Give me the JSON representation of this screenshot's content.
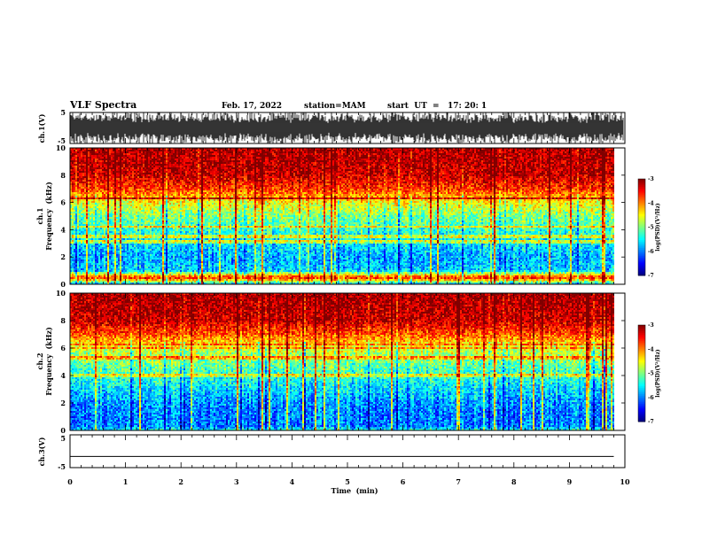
{
  "header": {
    "title": "VLF Spectra",
    "date": "Feb. 17, 2022",
    "station": "station=MAM",
    "start": "start  UT  =   17: 20: 1"
  },
  "chart_data": [
    {
      "type": "line",
      "name": "ch1-waveform",
      "ylabel": "ch.1(V)",
      "ylim": [
        -5,
        5
      ],
      "yticks": [
        "5",
        "-5"
      ],
      "xlim": [
        0,
        10
      ],
      "trace": "dense VLF waveform filling most of the ±5 V range (clipped)"
    },
    {
      "type": "heatmap",
      "name": "ch1-spectrogram",
      "ylabel_line1": "ch.1",
      "ylabel_line2": "Frequency  (kHz)",
      "ylim": [
        0,
        10
      ],
      "yticks": [
        "0",
        "2",
        "4",
        "6",
        "8",
        "10"
      ],
      "xlim": [
        0,
        9.8
      ],
      "colorbar": {
        "label": "log(PSD)(V²/Hz)",
        "range": [
          -7,
          -3
        ],
        "ticks": [
          "-3",
          "-4",
          "-5",
          "-6",
          "-7"
        ]
      },
      "profile": {
        "freq_khz": [
          0,
          0.3,
          0.5,
          1,
          2,
          3,
          4,
          5,
          6,
          6.5,
          7,
          8,
          9,
          10
        ],
        "log_psd": [
          -5.8,
          -4.3,
          -3.6,
          -5.7,
          -5.8,
          -5.6,
          -5.3,
          -5.0,
          -4.5,
          -4.1,
          -3.7,
          -3.3,
          -3.2,
          -3.2
        ]
      }
    },
    {
      "type": "heatmap",
      "name": "ch2-spectrogram",
      "ylabel_line1": "ch.2",
      "ylabel_line2": "Frequency  (kHz)",
      "ylim": [
        0,
        10
      ],
      "yticks": [
        "0",
        "2",
        "4",
        "6",
        "8",
        "10"
      ],
      "xlim": [
        0,
        9.8
      ],
      "colorbar": {
        "label": "log(PSD)(V²/Hz)",
        "range": [
          -7,
          -3
        ],
        "ticks": [
          "-3",
          "-4",
          "-5",
          "-6",
          "-7"
        ]
      },
      "profile": {
        "freq_khz": [
          0,
          0.3,
          1,
          2,
          3,
          4,
          5,
          6,
          6.5,
          7,
          8,
          9,
          10
        ],
        "log_psd": [
          -5.4,
          -6.0,
          -6.0,
          -5.9,
          -5.6,
          -5.3,
          -5.0,
          -4.6,
          -4.2,
          -3.8,
          -3.3,
          -3.2,
          -3.1
        ]
      }
    },
    {
      "type": "line",
      "name": "ch3-waveform",
      "ylabel": "ch.3(V)",
      "ylim": [
        -5,
        5
      ],
      "yticks": [
        "5",
        "-5"
      ],
      "xlim": [
        0,
        10
      ],
      "values": [
        -1.6,
        -1.6
      ]
    }
  ],
  "xaxis": {
    "label": "Time  (min)",
    "ticks": [
      "0",
      "1",
      "2",
      "3",
      "4",
      "5",
      "6",
      "7",
      "8",
      "9",
      "10"
    ]
  }
}
